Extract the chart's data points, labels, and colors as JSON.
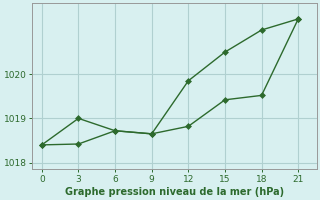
{
  "x": [
    0,
    3,
    6,
    9,
    12,
    15,
    18,
    21
  ],
  "line_upper": [
    1018.4,
    1019.0,
    1018.72,
    1018.65,
    1019.85,
    1020.5,
    1021.0,
    1021.25
  ],
  "line_lower": [
    1018.4,
    1018.42,
    1018.72,
    1018.65,
    1018.82,
    1019.42,
    1019.52,
    1021.25
  ],
  "line_color": "#2d6a2d",
  "bg_color": "#d8f0f0",
  "grid_color": "#b0d0d0",
  "xlabel": "Graphe pression niveau de la mer (hPa)",
  "ylim_min": 1017.85,
  "ylim_max": 1021.6,
  "yticks": [
    1018,
    1019,
    1020
  ],
  "xticks": [
    0,
    3,
    6,
    9,
    12,
    15,
    18,
    21
  ],
  "markersize": 3,
  "linewidth": 1.0
}
